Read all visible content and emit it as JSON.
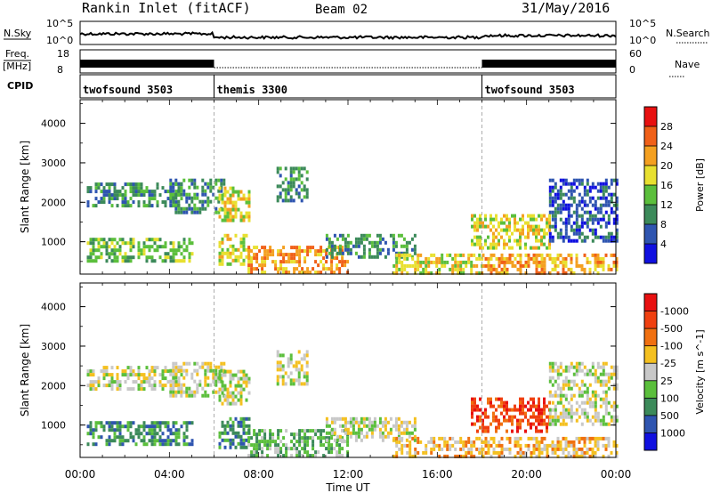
{
  "header": {
    "station": "Rankin Inlet (fitACF)",
    "beam": "Beam 02",
    "date": "31/May/2016"
  },
  "top_panels": {
    "nsky_label": "N.Sky",
    "nsky_ticks": [
      "10^5",
      "10^0"
    ],
    "nsearch_label": "N.Search",
    "nsearch_ticks": [
      "10^5",
      "10^0"
    ],
    "freq_label_1": "Freq.",
    "freq_label_2": "[MHz]",
    "freq_ticks": [
      "18",
      "8"
    ],
    "nave_label": "Nave",
    "nave_ticks": [
      "60",
      "0"
    ],
    "cpid_label": "CPID",
    "cpid_segments": [
      {
        "name": "twofsound 3503",
        "start_h": 0,
        "end_h": 6
      },
      {
        "name": "themis 3300",
        "start_h": 6,
        "end_h": 18
      },
      {
        "name": "twofsound 3503",
        "start_h": 18,
        "end_h": 24
      }
    ]
  },
  "x_axis": {
    "label": "Time UT",
    "ticks": [
      "00:00",
      "04:00",
      "08:00",
      "12:00",
      "16:00",
      "20:00",
      "00:00"
    ],
    "range_h": [
      0,
      24
    ]
  },
  "y_axis": {
    "label": "Slant Range [km]",
    "ticks": [
      "1000",
      "2000",
      "3000",
      "4000"
    ],
    "range_km": [
      180,
      4600
    ]
  },
  "chart_data": [
    {
      "type": "heatmap",
      "title": "Power",
      "colorbar_label": "Power [dB]",
      "colorbar_ticks": [
        "4",
        "8",
        "12",
        "16",
        "20",
        "24",
        "28"
      ],
      "colorbar_colors": [
        "#1010e0",
        "#2f55b0",
        "#3c8a5a",
        "#5bbf3c",
        "#e8e030",
        "#f4a020",
        "#f06018",
        "#e81010"
      ],
      "x": "Time UT (hours)",
      "y": "Slant Range (km)",
      "xlim": [
        0,
        24
      ],
      "ylim": [
        180,
        4600
      ],
      "echo_regions": [
        {
          "t0": 0.3,
          "t1": 4.5,
          "r0": 1900,
          "r1": 2500,
          "level": 2
        },
        {
          "t0": 0.3,
          "t1": 5.0,
          "r0": 500,
          "r1": 1100,
          "level": 3
        },
        {
          "t0": 4.0,
          "t1": 6.5,
          "r0": 1700,
          "r1": 2600,
          "level": 2
        },
        {
          "t0": 6.2,
          "t1": 7.6,
          "r0": 1500,
          "r1": 2400,
          "level": 4
        },
        {
          "t0": 6.2,
          "t1": 7.6,
          "r0": 400,
          "r1": 1200,
          "level": 4
        },
        {
          "t0": 8.8,
          "t1": 10.2,
          "r0": 2000,
          "r1": 2900,
          "level": 2
        },
        {
          "t0": 7.5,
          "t1": 12.0,
          "r0": 180,
          "r1": 900,
          "level": 5
        },
        {
          "t0": 11.0,
          "t1": 15.0,
          "r0": 600,
          "r1": 1200,
          "level": 2
        },
        {
          "t0": 14.0,
          "t1": 18.0,
          "r0": 180,
          "r1": 700,
          "level": 4
        },
        {
          "t0": 17.5,
          "t1": 21.0,
          "r0": 800,
          "r1": 1700,
          "level": 4
        },
        {
          "t0": 18.0,
          "t1": 24.0,
          "r0": 180,
          "r1": 700,
          "level": 5
        },
        {
          "t0": 21.0,
          "t1": 24.0,
          "r0": 1000,
          "r1": 2600,
          "level": 1
        }
      ]
    },
    {
      "type": "heatmap",
      "title": "Velocity",
      "colorbar_label": "Velocity [m s^-1]",
      "colorbar_ticks": [
        "1000",
        "500",
        "100",
        "25",
        "-25",
        "-100",
        "-500",
        "-1000"
      ],
      "colorbar_colors": [
        "#1010e0",
        "#2f55b0",
        "#3c8a5a",
        "#5bbf3c",
        "#c8c8c8",
        "#f4c020",
        "#f07010",
        "#f04010",
        "#e81010"
      ],
      "x": "Time UT (hours)",
      "y": "Slant Range (km)",
      "xlim": [
        0,
        24
      ],
      "ylim": [
        180,
        4600
      ],
      "echo_regions": [
        {
          "t0": 0.3,
          "t1": 4.5,
          "r0": 1900,
          "r1": 2500,
          "level": 4
        },
        {
          "t0": 0.3,
          "t1": 5.0,
          "r0": 500,
          "r1": 1100,
          "level": 2
        },
        {
          "t0": 4.0,
          "t1": 6.5,
          "r0": 1700,
          "r1": 2600,
          "level": 4
        },
        {
          "t0": 6.2,
          "t1": 7.6,
          "r0": 1500,
          "r1": 2400,
          "level": 4
        },
        {
          "t0": 6.2,
          "t1": 7.6,
          "r0": 400,
          "r1": 1200,
          "level": 2
        },
        {
          "t0": 8.8,
          "t1": 10.2,
          "r0": 2000,
          "r1": 2900,
          "level": 4
        },
        {
          "t0": 7.5,
          "t1": 12.0,
          "r0": 180,
          "r1": 900,
          "level": 3
        },
        {
          "t0": 11.0,
          "t1": 15.0,
          "r0": 600,
          "r1": 1200,
          "level": 4
        },
        {
          "t0": 14.0,
          "t1": 18.0,
          "r0": 180,
          "r1": 700,
          "level": 5
        },
        {
          "t0": 17.5,
          "t1": 21.0,
          "r0": 800,
          "r1": 1700,
          "level": 7
        },
        {
          "t0": 18.0,
          "t1": 24.0,
          "r0": 180,
          "r1": 700,
          "level": 5
        },
        {
          "t0": 21.0,
          "t1": 24.0,
          "r0": 1000,
          "r1": 2600,
          "level": 4
        }
      ]
    }
  ]
}
